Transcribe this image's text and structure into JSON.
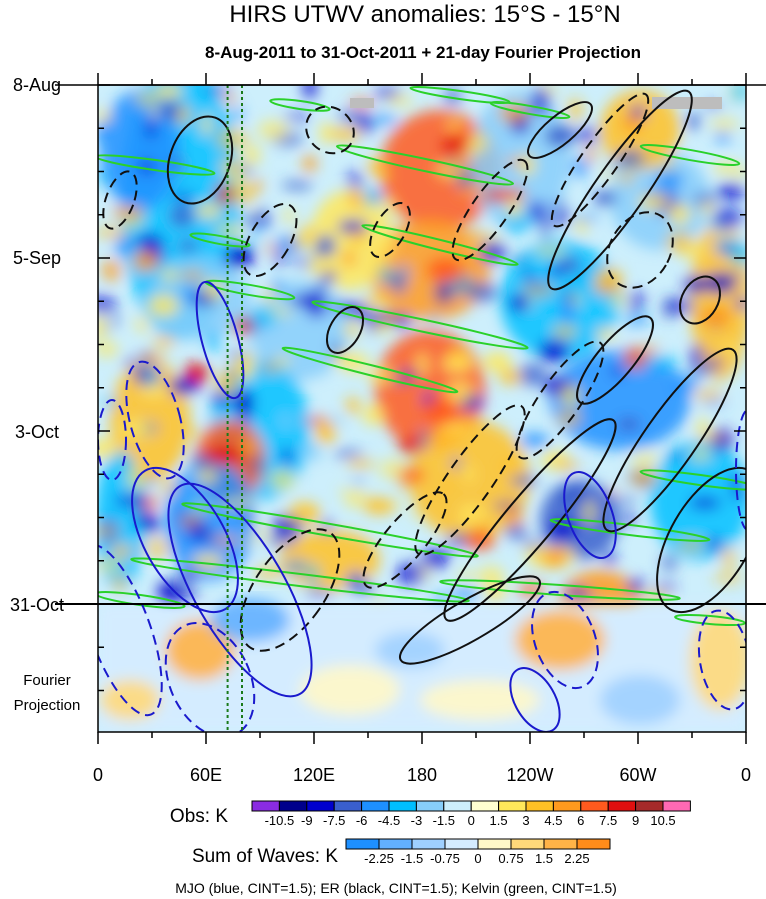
{
  "chart_data": {
    "type": "heatmap",
    "title": "HIRS UTWV anomalies: 15°S - 15°N",
    "subtitle": "8-Aug-2011 to 31-Oct-2011 + 21-day Fourier Projection",
    "y_tick_labels": [
      "8-Aug",
      "5-Sep",
      "3-Oct",
      "31-Oct"
    ],
    "projection_label": [
      "Fourier",
      "Projection"
    ],
    "x_tick_labels": [
      "0",
      "60E",
      "120E",
      "180",
      "120W",
      "60W",
      "0"
    ],
    "x_range_deg": [
      0,
      360
    ],
    "obs_colorbar": {
      "title": "Obs: K",
      "levels": [
        "-10.5",
        "-9",
        "-7.5",
        "-6",
        "-4.5",
        "-3",
        "-1.5",
        "0",
        "1.5",
        "3",
        "4.5",
        "6",
        "7.5",
        "9",
        "10.5"
      ],
      "colors": [
        "#8a2be2",
        "#00008b",
        "#0000cd",
        "#3a5fcd",
        "#1e90ff",
        "#00bfff",
        "#87cefa",
        "#cdeffc",
        "#ffffd0",
        "#ffe85a",
        "#ffc125",
        "#ff9a1e",
        "#ff5a1e",
        "#e01010",
        "#a52a2a",
        "#ff69b4"
      ]
    },
    "waves_colorbar": {
      "title": "Sum of Waves: K",
      "levels": [
        "-2.25",
        "-1.5",
        "-0.75",
        "0",
        "0.75",
        "1.5",
        "2.25"
      ],
      "colors": [
        "#1e90ff",
        "#62b0ff",
        "#9fd0ff",
        "#d4ecff",
        "#fff8c8",
        "#ffd97a",
        "#ffb347",
        "#ff8c1a"
      ]
    },
    "footnote": "MJO (blue, CINT=1.5); ER (black, CINT=1.5); Kelvin (green, CINT=1.5)",
    "series": [
      {
        "name": "MJO",
        "color": "#1a1acd",
        "contour_interval": 1.5
      },
      {
        "name": "ER",
        "color": "#000000",
        "contour_interval": 1.5
      },
      {
        "name": "Kelvin",
        "color": "#22cc22",
        "contour_interval": 1.5
      }
    ],
    "reference_longitudes_deg": [
      72,
      80
    ]
  },
  "colors": {
    "mjo": "#1a1acd",
    "er": "#111111",
    "kelvin": "#2ad12a",
    "reference_line": "#1a7a1a"
  }
}
